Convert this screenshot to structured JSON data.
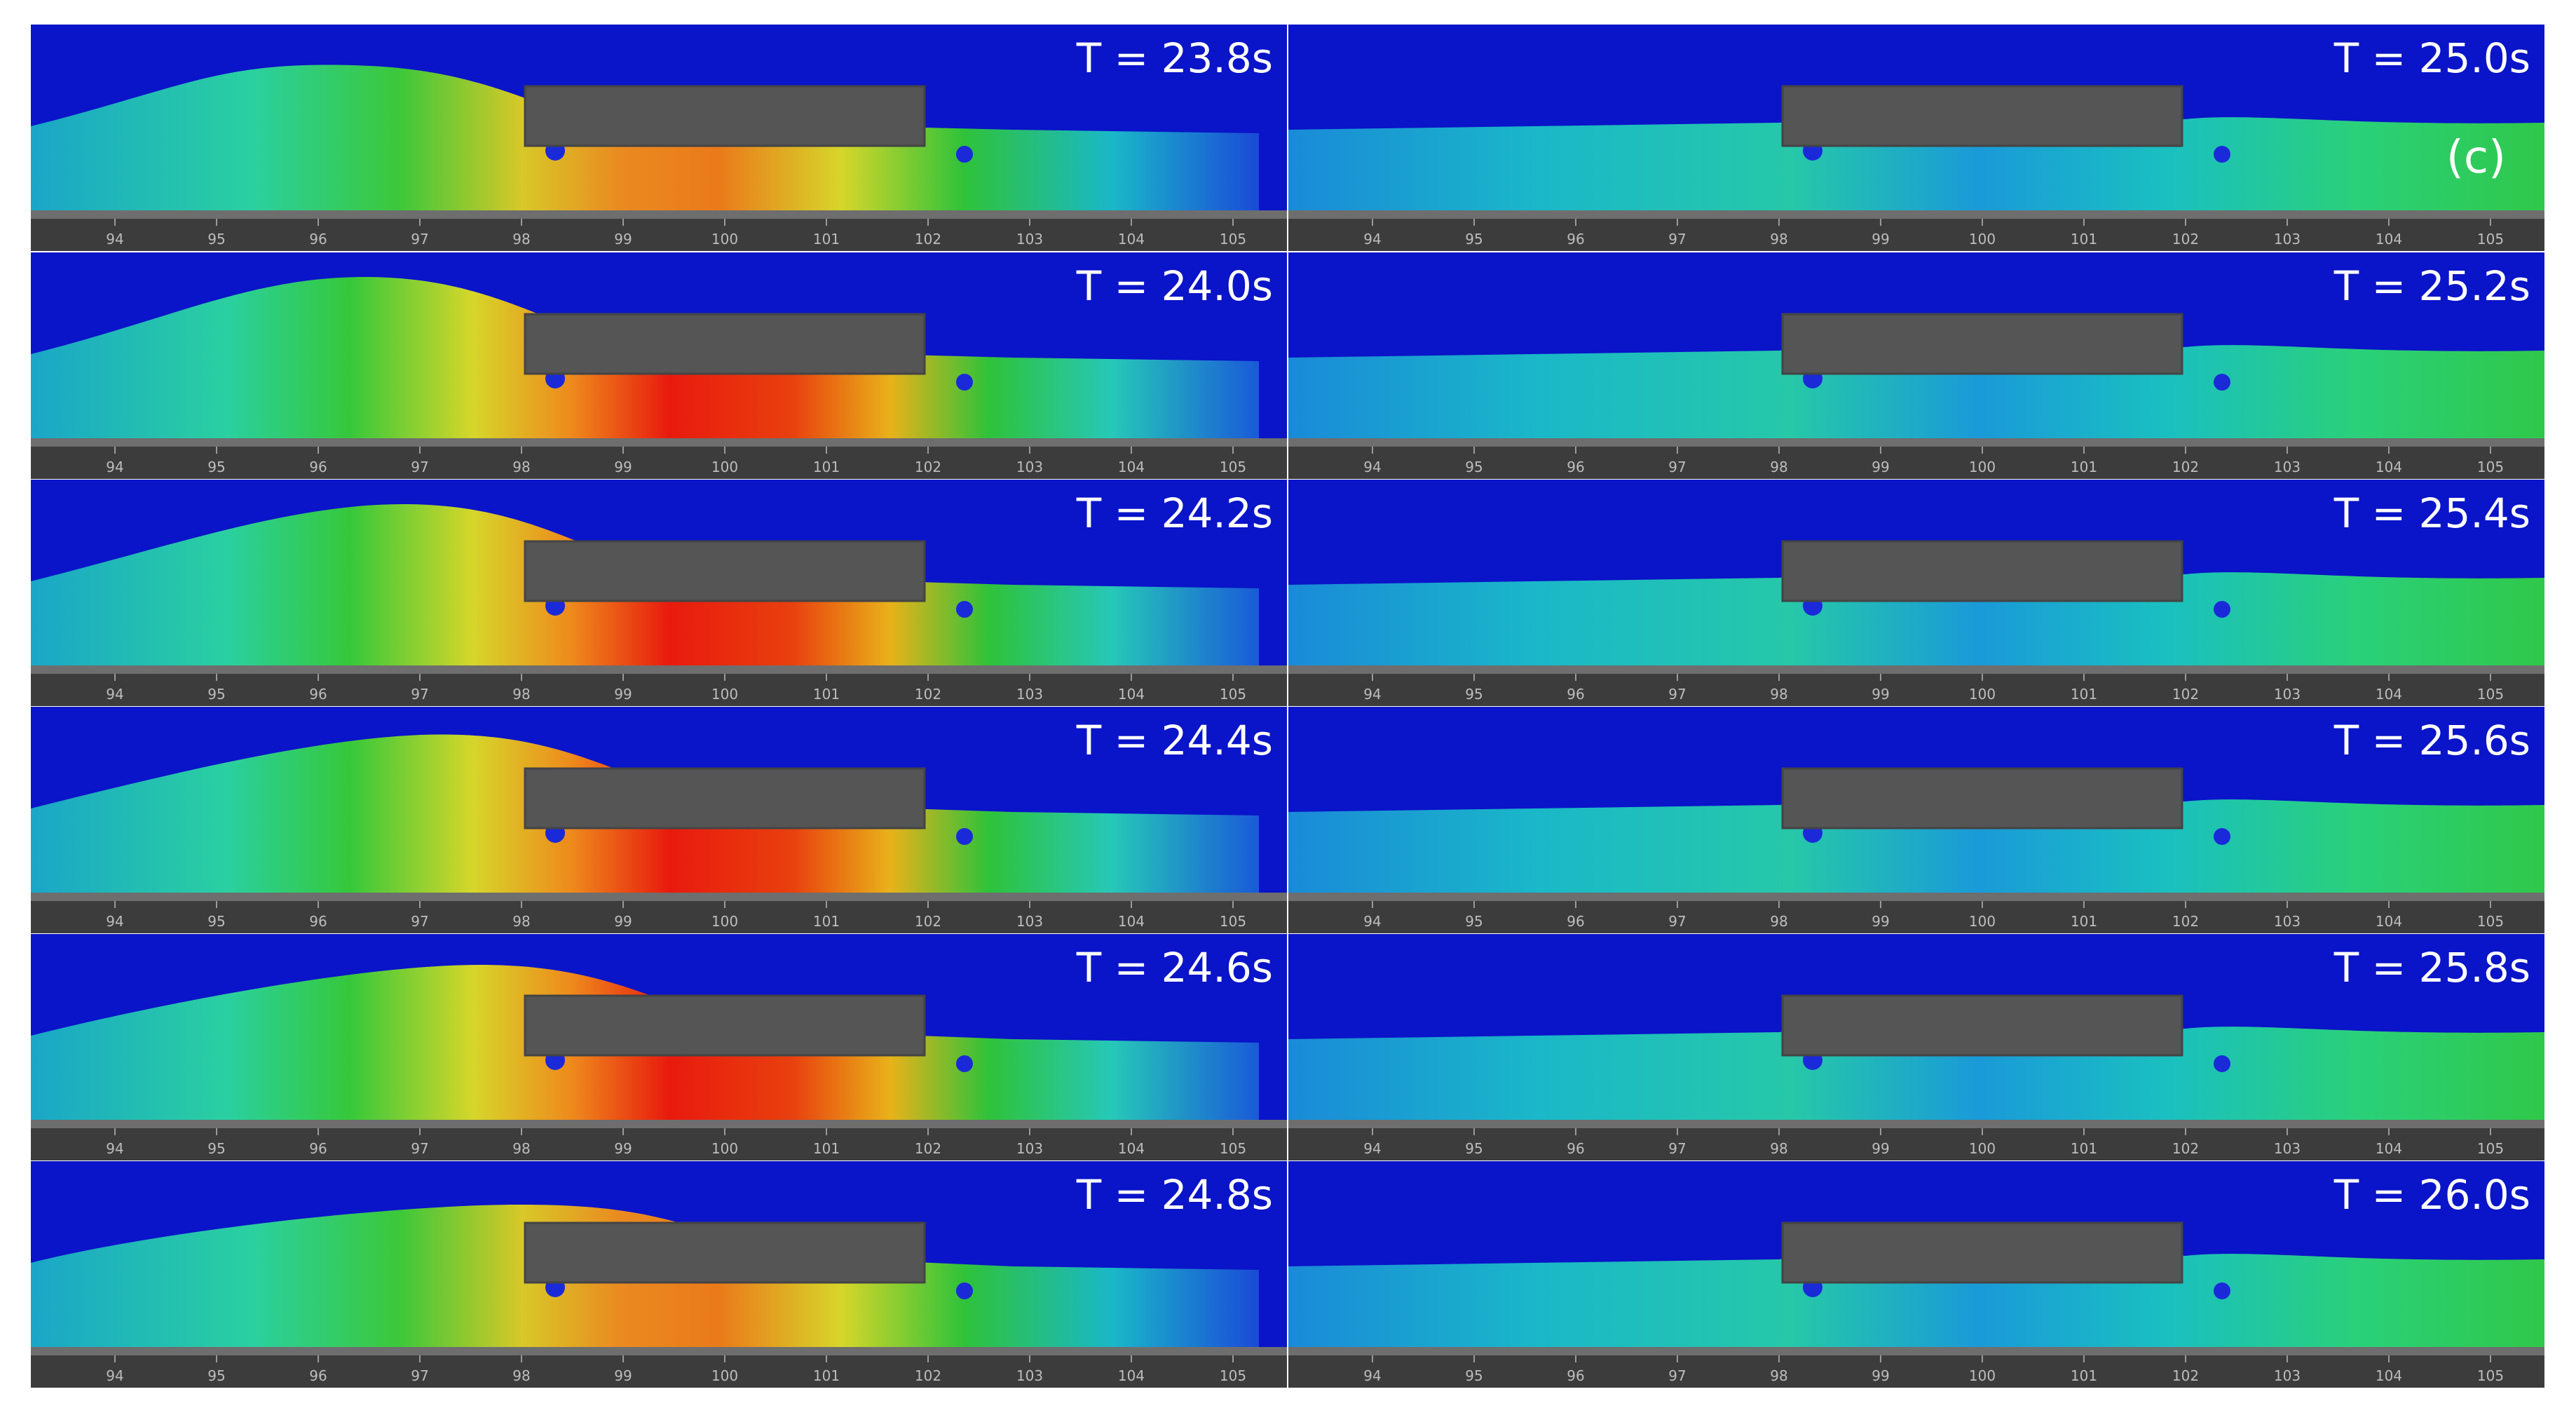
{
  "figure": {
    "panel_tag": "(c)",
    "colors": {
      "background_blue": "#0a14c8",
      "structure": "#555555",
      "bed": "#6e6e6e",
      "scale_strip": "#3c3c3c"
    },
    "axis_ticks": [
      "94",
      "95",
      "96",
      "97",
      "98",
      "99",
      "100",
      "101",
      "102",
      "103",
      "104",
      "105"
    ],
    "frames": [
      {
        "time": "T = 23.8s",
        "intensity": 0.75
      },
      {
        "time": "T = 24.0s",
        "intensity": 1.0
      },
      {
        "time": "T = 24.2s",
        "intensity": 1.0
      },
      {
        "time": "T = 24.4s",
        "intensity": 0.95
      },
      {
        "time": "T = 24.6s",
        "intensity": 0.9
      },
      {
        "time": "T = 24.8s",
        "intensity": 0.7
      },
      {
        "time": "T = 25.0s",
        "intensity": 0.35
      },
      {
        "time": "T = 25.2s",
        "intensity": 0.3
      },
      {
        "time": "T = 25.4s",
        "intensity": 0.3
      },
      {
        "time": "T = 25.6s",
        "intensity": 0.3
      },
      {
        "time": "T = 25.8s",
        "intensity": 0.3
      },
      {
        "time": "T = 26.0s",
        "intensity": 0.28
      }
    ]
  }
}
